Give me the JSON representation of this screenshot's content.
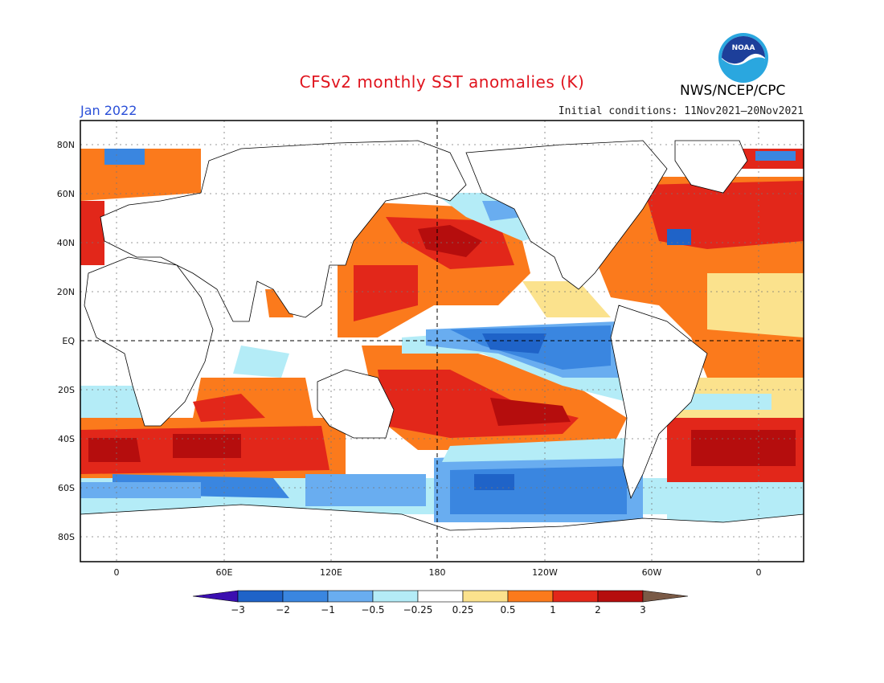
{
  "header": {
    "title": "CFSv2 monthly SST anomalies (K)",
    "month": "Jan 2022",
    "initial_conditions": "Initial conditions: 11Nov2021—20Nov2021",
    "organization": "NWS/NCEP/CPC",
    "logo_text": "NOAA"
  },
  "axes": {
    "lat_labels": [
      "80N",
      "60N",
      "40N",
      "20N",
      "EQ",
      "20S",
      "40S",
      "60S",
      "80S"
    ],
    "lon_labels": [
      "0",
      "60E",
      "120E",
      "180",
      "120W",
      "60W",
      "0"
    ]
  },
  "colorbar": {
    "labels": [
      "−3",
      "−2",
      "−1",
      "−0.5",
      "−0.25",
      "0.25",
      "0.5",
      "1",
      "2",
      "3"
    ],
    "colors": [
      "#3b0fb0",
      "#1f63c8",
      "#3a86e0",
      "#69adf0",
      "#b4ecf7",
      "#ffffff",
      "#fbe28d",
      "#fb7a1c",
      "#e2271a",
      "#b50d0d",
      "#7a5a46"
    ]
  },
  "colors": {
    "title": "#e0141e",
    "month": "#2a4fd8",
    "land_outline": "#000000"
  }
}
